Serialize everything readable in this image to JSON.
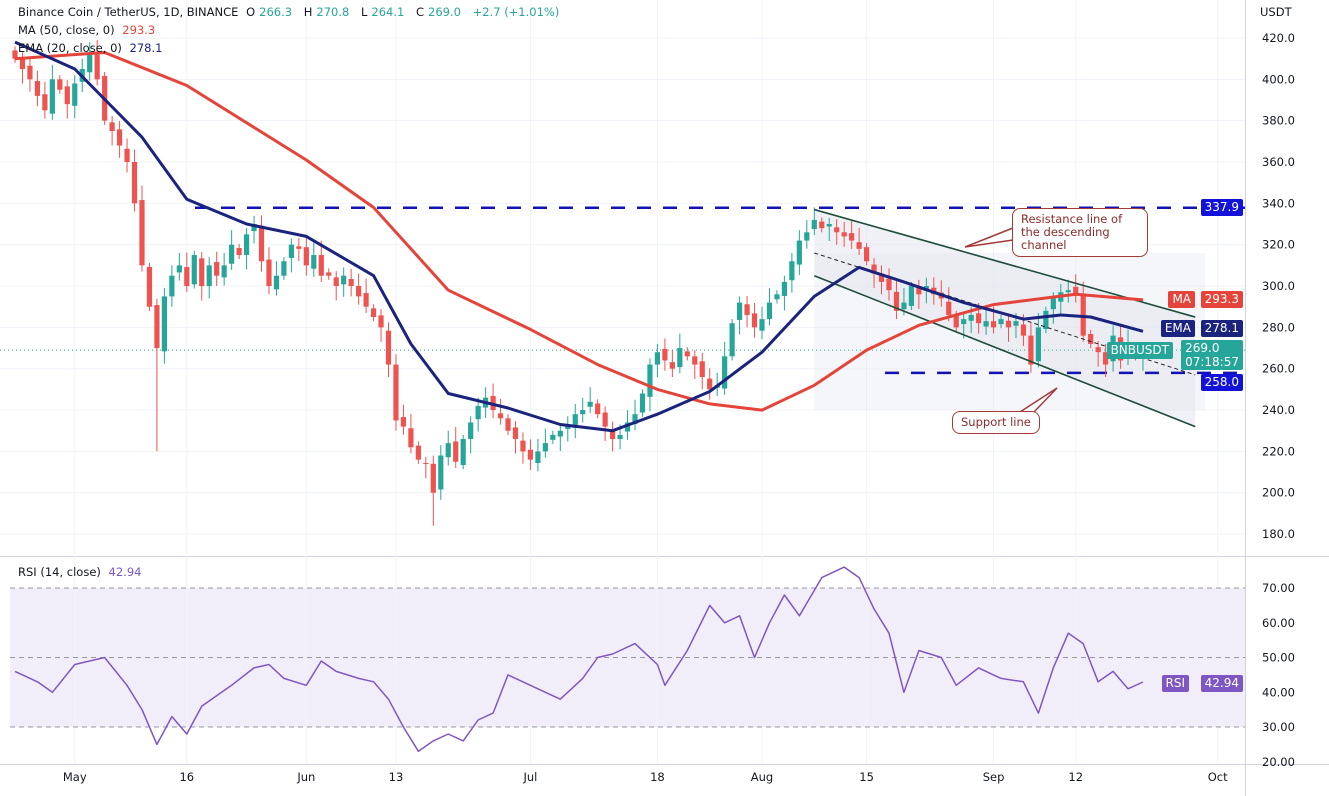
{
  "header": {
    "symbol_title": "Binance Coin / TetherUS, 1D, BINANCE",
    "open_label": "O",
    "open": "266.3",
    "high_label": "H",
    "high": "270.8",
    "low_label": "L",
    "low": "264.1",
    "close_label": "C",
    "close": "269.0",
    "change": "+2.7 (+1.01%)",
    "ma_label": "MA (50, close, 0)",
    "ma_value": "293.3",
    "ema_label": "EMA (20, close, 0)",
    "ema_value": "278.1",
    "rsi_label": "RSI (14, close)",
    "rsi_value": "42.94"
  },
  "axis": {
    "currency": "USDT",
    "price_ticks": [
      "420.0",
      "400.0",
      "380.0",
      "360.0",
      "340.0",
      "320.0",
      "300.0",
      "280.0",
      "260.0",
      "240.0",
      "220.0",
      "200.0",
      "180.0"
    ],
    "rsi_ticks": [
      "70.00",
      "60.00",
      "50.00",
      "40.00",
      "30.00",
      "20.00"
    ],
    "time_labels": [
      {
        "date": "2022-05-01",
        "label": "May"
      },
      {
        "date": "2022-05-16",
        "label": "16"
      },
      {
        "date": "2022-06-01",
        "label": "Jun"
      },
      {
        "date": "2022-06-13",
        "label": "13"
      },
      {
        "date": "2022-07-01",
        "label": "Jul"
      },
      {
        "date": "2022-07-18",
        "label": "18"
      },
      {
        "date": "2022-08-01",
        "label": "Aug"
      },
      {
        "date": "2022-08-15",
        "label": "15"
      },
      {
        "date": "2022-09-01",
        "label": "Sep"
      },
      {
        "date": "2022-09-12",
        "label": "12"
      },
      {
        "date": "2022-10-01",
        "label": "Oct"
      }
    ]
  },
  "tags": {
    "resistance": "337.9",
    "ma_name": "MA",
    "ma": "293.3",
    "ema_name": "EMA",
    "ema": "278.1",
    "symbol": "BNBUSDT",
    "price": "269.0",
    "countdown": "07:18:57",
    "support": "258.0",
    "rsi_name": "RSI",
    "rsi": "42.94"
  },
  "annotations": {
    "resistance_callout": "Resistance line of the descending channel",
    "support_callout": "Support line"
  },
  "colors": {
    "up": "#26a69a",
    "down": "#ef5350",
    "ma": "#e5443a",
    "ema": "#1a237e",
    "level": "#1212b8",
    "rsi": "#7e57c2",
    "channel": "#1e4d3a"
  },
  "chart_data": {
    "type": "candlestick",
    "start_date": "2022-04-23",
    "interval": "1D",
    "ylim": [
      175,
      425
    ],
    "closes": [
      410,
      405,
      400,
      392,
      385,
      400,
      395,
      388,
      398,
      405,
      412,
      400,
      380,
      375,
      368,
      360,
      340,
      310,
      290,
      270,
      295,
      305,
      310,
      300,
      315,
      300,
      310,
      305,
      310,
      320,
      315,
      325,
      330,
      312,
      300,
      305,
      312,
      320,
      318,
      310,
      315,
      305,
      305,
      300,
      305,
      300,
      295,
      290,
      285,
      280,
      262,
      235,
      232,
      222,
      216,
      214,
      200,
      218,
      224,
      215,
      226,
      234,
      242,
      246,
      240,
      236,
      230,
      226,
      220,
      216,
      220,
      224,
      228,
      230,
      233,
      238,
      240,
      244,
      238,
      232,
      226,
      228,
      234,
      238,
      248,
      262,
      268,
      264,
      260,
      270,
      266,
      262,
      256,
      250,
      252,
      266,
      282,
      292,
      286,
      280,
      284,
      292,
      296,
      302,
      312,
      322,
      326,
      332,
      328,
      330,
      326,
      324,
      322,
      318,
      312,
      306,
      302,
      298,
      288,
      292,
      300,
      296,
      300,
      296,
      294,
      286,
      280,
      284,
      286,
      282,
      283,
      280,
      284,
      280,
      283,
      276,
      262,
      280,
      288,
      294,
      297,
      298,
      296,
      276,
      272,
      268,
      262,
      276,
      264,
      272,
      266,
      269
    ],
    "wick_overrides": {
      "2022-05-12": {
        "low": 220
      },
      "2022-06-18": {
        "low": 184
      },
      "2022-08-08": {
        "high": 338
      }
    },
    "ma50": [
      [
        "2022-04-23",
        410
      ],
      [
        "2022-05-05",
        413
      ],
      [
        "2022-05-16",
        397
      ],
      [
        "2022-06-01",
        361
      ],
      [
        "2022-06-10",
        338
      ],
      [
        "2022-06-20",
        298
      ],
      [
        "2022-07-01",
        279
      ],
      [
        "2022-07-10",
        262
      ],
      [
        "2022-07-18",
        250
      ],
      [
        "2022-07-25",
        243
      ],
      [
        "2022-08-01",
        240
      ],
      [
        "2022-08-08",
        252
      ],
      [
        "2022-08-15",
        269
      ],
      [
        "2022-08-22",
        281
      ],
      [
        "2022-09-01",
        291
      ],
      [
        "2022-09-12",
        296
      ],
      [
        "2022-09-21",
        293.3
      ]
    ],
    "ema20": [
      [
        "2022-04-23",
        418
      ],
      [
        "2022-05-01",
        405
      ],
      [
        "2022-05-10",
        372
      ],
      [
        "2022-05-16",
        342
      ],
      [
        "2022-05-24",
        330
      ],
      [
        "2022-06-01",
        324
      ],
      [
        "2022-06-10",
        305
      ],
      [
        "2022-06-15",
        272
      ],
      [
        "2022-06-20",
        248
      ],
      [
        "2022-06-28",
        241
      ],
      [
        "2022-07-05",
        233
      ],
      [
        "2022-07-12",
        230
      ],
      [
        "2022-07-18",
        238
      ],
      [
        "2022-07-25",
        249
      ],
      [
        "2022-08-01",
        268
      ],
      [
        "2022-08-08",
        295
      ],
      [
        "2022-08-14",
        309
      ],
      [
        "2022-08-20",
        302
      ],
      [
        "2022-08-28",
        292
      ],
      [
        "2022-09-05",
        284
      ],
      [
        "2022-09-10",
        286
      ],
      [
        "2022-09-14",
        285
      ],
      [
        "2022-09-21",
        278.1
      ]
    ],
    "rsi": [
      [
        "2022-04-23",
        46
      ],
      [
        "2022-04-26",
        43
      ],
      [
        "2022-04-28",
        40
      ],
      [
        "2022-05-01",
        48
      ],
      [
        "2022-05-05",
        50
      ],
      [
        "2022-05-08",
        42
      ],
      [
        "2022-05-10",
        35
      ],
      [
        "2022-05-12",
        25
      ],
      [
        "2022-05-14",
        33
      ],
      [
        "2022-05-16",
        28
      ],
      [
        "2022-05-18",
        36
      ],
      [
        "2022-05-22",
        42
      ],
      [
        "2022-05-25",
        47
      ],
      [
        "2022-05-27",
        48
      ],
      [
        "2022-05-29",
        44
      ],
      [
        "2022-06-01",
        42
      ],
      [
        "2022-06-03",
        49
      ],
      [
        "2022-06-05",
        46
      ],
      [
        "2022-06-08",
        44
      ],
      [
        "2022-06-10",
        43
      ],
      [
        "2022-06-12",
        38
      ],
      [
        "2022-06-14",
        30
      ],
      [
        "2022-06-16",
        23
      ],
      [
        "2022-06-18",
        26
      ],
      [
        "2022-06-20",
        28
      ],
      [
        "2022-06-22",
        26
      ],
      [
        "2022-06-24",
        32
      ],
      [
        "2022-06-26",
        34
      ],
      [
        "2022-06-28",
        45
      ],
      [
        "2022-07-01",
        42
      ],
      [
        "2022-07-03",
        40
      ],
      [
        "2022-07-05",
        38
      ],
      [
        "2022-07-08",
        44
      ],
      [
        "2022-07-10",
        50
      ],
      [
        "2022-07-12",
        51
      ],
      [
        "2022-07-15",
        54
      ],
      [
        "2022-07-18",
        48
      ],
      [
        "2022-07-19",
        42
      ],
      [
        "2022-07-22",
        52
      ],
      [
        "2022-07-25",
        65
      ],
      [
        "2022-07-27",
        60
      ],
      [
        "2022-07-29",
        62
      ],
      [
        "2022-07-31",
        50
      ],
      [
        "2022-08-02",
        60
      ],
      [
        "2022-08-04",
        68
      ],
      [
        "2022-08-06",
        62
      ],
      [
        "2022-08-09",
        73
      ],
      [
        "2022-08-12",
        76
      ],
      [
        "2022-08-14",
        73
      ],
      [
        "2022-08-16",
        64
      ],
      [
        "2022-08-18",
        57
      ],
      [
        "2022-08-20",
        40
      ],
      [
        "2022-08-22",
        52
      ],
      [
        "2022-08-25",
        50
      ],
      [
        "2022-08-27",
        42
      ],
      [
        "2022-08-30",
        47
      ],
      [
        "2022-09-02",
        44
      ],
      [
        "2022-09-05",
        43
      ],
      [
        "2022-09-07",
        34
      ],
      [
        "2022-09-09",
        47
      ],
      [
        "2022-09-11",
        57
      ],
      [
        "2022-09-13",
        54
      ],
      [
        "2022-09-15",
        43
      ],
      [
        "2022-09-17",
        46
      ],
      [
        "2022-09-19",
        41
      ],
      [
        "2022-09-21",
        42.94
      ]
    ],
    "rsi_ylim": [
      20,
      70
    ],
    "levels": {
      "resistance": 337.9,
      "support": 258.0,
      "last_price": 269.0,
      "rsi_upper": 70,
      "rsi_middle": 50,
      "rsi_lower": 30
    },
    "channel": {
      "upper": [
        [
          "2022-08-08",
          337
        ],
        [
          "2022-09-28",
          285
        ]
      ],
      "middle": [
        [
          "2022-08-08",
          316
        ],
        [
          "2022-09-28",
          257
        ]
      ],
      "lower": [
        [
          "2022-08-08",
          305
        ],
        [
          "2022-09-28",
          232
        ]
      ]
    }
  }
}
